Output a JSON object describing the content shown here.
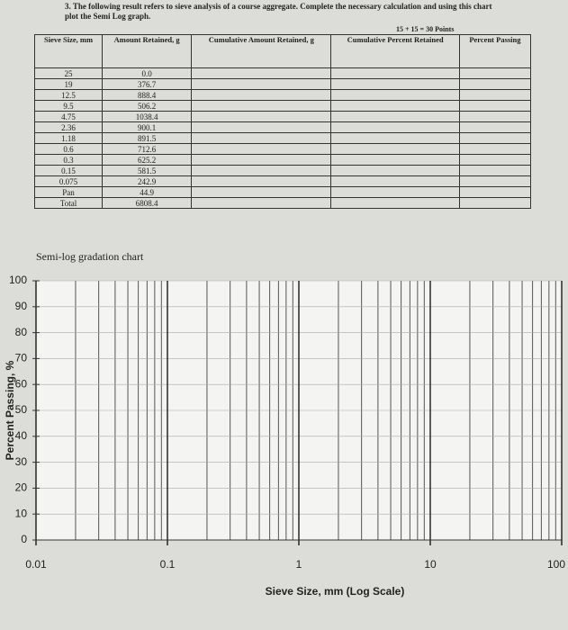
{
  "header": {
    "question": "3. The following result refers to sieve analysis of a course aggregate. Complete the necessary calculation and using this chart plot the Semi Log graph.",
    "points": "15 + 15 = 30 Points"
  },
  "table": {
    "headers": [
      "Sieve Size, mm",
      "Amount Retained, g",
      "Cumulative Amount Retained, g",
      "Cumulative Percent Retained",
      "Percent Passing"
    ],
    "rows": [
      [
        "25",
        "0.0"
      ],
      [
        "19",
        "376.7"
      ],
      [
        "12.5",
        "888.4"
      ],
      [
        "9.5",
        "506.2"
      ],
      [
        "4.75",
        "1038.4"
      ],
      [
        "2.36",
        "900.1"
      ],
      [
        "1.18",
        "891.5"
      ],
      [
        "0.6",
        "712.6"
      ],
      [
        "0.3",
        "625.2"
      ],
      [
        "0.15",
        "581.5"
      ],
      [
        "0.075",
        "242.9"
      ],
      [
        "Pan",
        "44.9"
      ],
      [
        "Total",
        "6808.4"
      ]
    ]
  },
  "chart": {
    "title": "Semi-log gradation chart",
    "xlabel": "Sieve Size, mm (Log Scale)",
    "ylabel": "Percent Passing, %",
    "xscale": "log",
    "xlim": [
      0.01,
      100
    ],
    "ylim": [
      0,
      100
    ],
    "xticks": [
      0.01,
      0.1,
      1,
      10,
      100
    ],
    "yticks": [
      0,
      10,
      20,
      30,
      40,
      50,
      60,
      70,
      80,
      90,
      100
    ],
    "xminor": [
      0.02,
      0.03,
      0.04,
      0.05,
      0.06,
      0.07,
      0.08,
      0.09,
      0.2,
      0.3,
      0.4,
      0.5,
      0.6,
      0.7,
      0.8,
      0.9,
      2,
      3,
      4,
      5,
      6,
      7,
      8,
      9,
      20,
      30,
      40,
      50,
      60,
      70,
      80,
      90
    ],
    "grid": true
  }
}
